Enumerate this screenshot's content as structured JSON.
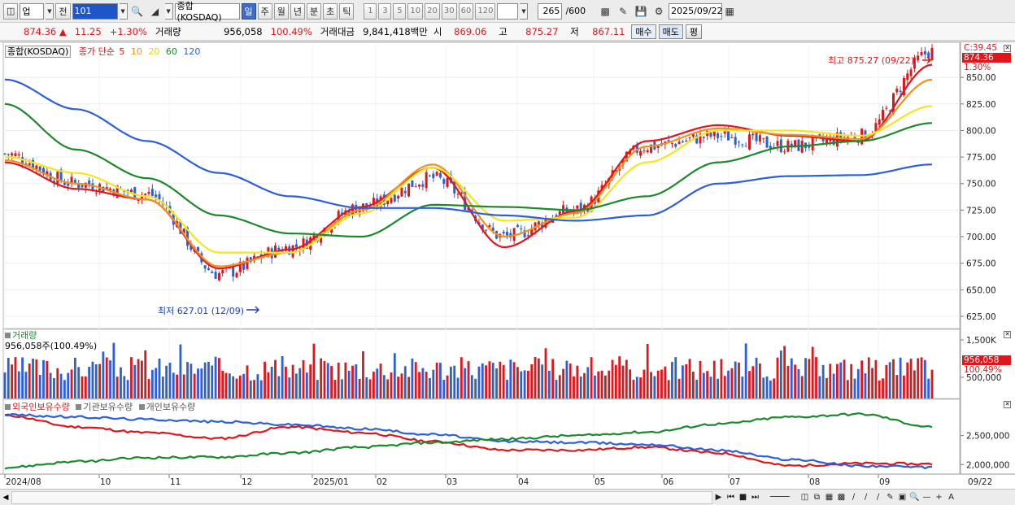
{
  "toolbar": {
    "market_type": "업",
    "prev_label": "전",
    "code": "101",
    "index_name": "종합(KOSDAQ)",
    "periods": [
      "일",
      "주",
      "월",
      "년",
      "분",
      "초",
      "틱"
    ],
    "active_period": "일",
    "intervals": [
      "1",
      "3",
      "5",
      "10",
      "20",
      "30",
      "60",
      "120"
    ],
    "count_value": "265",
    "count_max": "/600",
    "date": "2025/09/22"
  },
  "infobar": {
    "price": "874.36",
    "change": "11.25",
    "change_pct": "+1.30%",
    "volume_label": "거래량",
    "volume": "956,058",
    "volume_pct": "100.49%",
    "amount_label": "거래대금",
    "amount": "9,841,418백만",
    "open_label": "시",
    "open": "869.06",
    "high_label": "고",
    "high": "875.27",
    "low_label": "저",
    "low": "867.11",
    "buy_label": "매수",
    "sell_label": "매도",
    "eval_label": "평"
  },
  "price_panel": {
    "legend_name": "종합(KOSDAQ)",
    "ma_label": "종가 단순",
    "ma_periods": [
      {
        "label": "5",
        "color": "#e0161b"
      },
      {
        "label": "10",
        "color": "#f0921e"
      },
      {
        "label": "20",
        "color": "#f5e51c"
      },
      {
        "label": "60",
        "color": "#1a8a2a"
      },
      {
        "label": "120",
        "color": "#2c5fd8"
      }
    ],
    "high_annotation": "최고 875.27 (09/22)",
    "low_annotation": "최저 627.01 (12/09)",
    "right_top_label": "C:39.45",
    "current_price_tag": "874.36",
    "current_pct_tag": "1.30%",
    "y_ticks": [
      "850.00",
      "825.00",
      "800.00",
      "775.00",
      "750.00",
      "725.00",
      "700.00",
      "675.00",
      "650.00",
      "625.00"
    ]
  },
  "volume_panel": {
    "title": "거래량",
    "value_label": "956,058주(100.49%)",
    "y_ticks": [
      "1,500K",
      "500,000"
    ],
    "current_tag": "956,058",
    "current_pct_tag": "100.49%"
  },
  "holdings_panel": {
    "series": [
      {
        "name": "외국인보유수량",
        "color": "#e0161b"
      },
      {
        "name": "기관보유수량",
        "color": "#2c5fd8"
      },
      {
        "name": "개인보유수량",
        "color": "#1a8a2a"
      }
    ],
    "y_ticks": [
      "2,500,000",
      "2,000,000"
    ]
  },
  "x_axis": {
    "labels": [
      "2024/08",
      "10",
      "11",
      "12",
      "2025/01",
      "02",
      "03",
      "04",
      "05",
      "06",
      "07",
      "08",
      "09"
    ],
    "right_label": "09/22"
  },
  "chart_data": [
    {
      "type": "line",
      "kind": "candlestick",
      "ylim": [
        615,
        880
      ],
      "x": [
        "2024/08",
        "10",
        "11",
        "12",
        "2025/01",
        "02",
        "03",
        "04",
        "05",
        "06",
        "07",
        "08",
        "09",
        "09/22"
      ],
      "close_approx": [
        778,
        750,
        740,
        665,
        690,
        728,
        755,
        700,
        725,
        785,
        795,
        785,
        795,
        874.36
      ],
      "series": [
        {
          "name": "5",
          "values": [
            770,
            745,
            735,
            670,
            688,
            728,
            765,
            690,
            724,
            790,
            805,
            795,
            790,
            862
          ]
        },
        {
          "name": "10",
          "values": [
            772,
            750,
            735,
            672,
            685,
            725,
            768,
            700,
            722,
            785,
            802,
            796,
            792,
            848
          ]
        },
        {
          "name": "20",
          "values": [
            775,
            760,
            738,
            685,
            685,
            722,
            765,
            715,
            718,
            770,
            800,
            800,
            795,
            823
          ]
        },
        {
          "name": "60",
          "values": [
            825,
            782,
            755,
            720,
            703,
            700,
            730,
            728,
            725,
            738,
            770,
            785,
            790,
            807
          ]
        },
        {
          "name": "120",
          "values": [
            848,
            820,
            790,
            760,
            738,
            727,
            727,
            720,
            715,
            720,
            750,
            757,
            758,
            768
          ]
        }
      ]
    },
    {
      "type": "bar",
      "title": "거래량",
      "current": 956058,
      "current_pct": 100.49
    },
    {
      "type": "line",
      "ylim": [
        1850000,
        3000000
      ],
      "x": [
        "2024/08",
        "10",
        "11",
        "12",
        "2025/01",
        "02",
        "03",
        "04",
        "05",
        "06",
        "07",
        "08",
        "09",
        "09/22"
      ],
      "series": [
        {
          "name": "외국인보유수량",
          "values": [
            2850000,
            2650000,
            2550000,
            2450000,
            2650000,
            2550000,
            2400000,
            2250000,
            2250000,
            2300000,
            2200000,
            1980000,
            2020000,
            2010000
          ]
        },
        {
          "name": "기관보유수량",
          "values": [
            2860000,
            2820000,
            2780000,
            2740000,
            2690000,
            2620000,
            2520000,
            2400000,
            2380000,
            2350000,
            2250000,
            2090000,
            1980000,
            1950000
          ]
        },
        {
          "name": "개인보유수량",
          "values": [
            1950000,
            2050000,
            2120000,
            2130000,
            2200000,
            2300000,
            2380000,
            2440000,
            2500000,
            2560000,
            2700000,
            2820000,
            2870000,
            2650000
          ]
        }
      ]
    }
  ]
}
